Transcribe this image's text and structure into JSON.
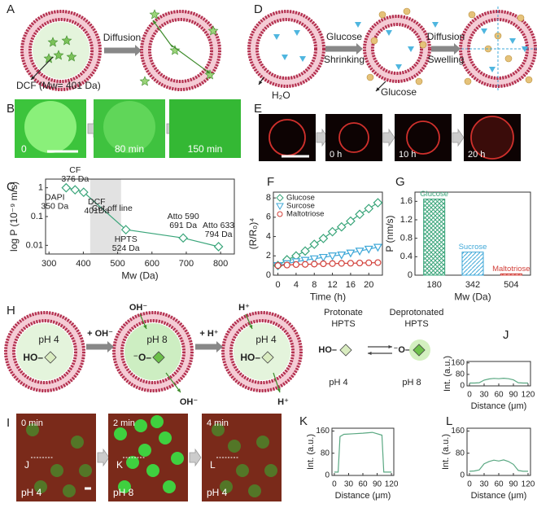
{
  "panels": {
    "A": {
      "label": "A",
      "arrow": "Diffusion",
      "dye": "DCF (Mw= 401 Da)"
    },
    "B": {
      "label": "B",
      "times": [
        "0",
        "80 min",
        "150 min"
      ]
    },
    "D": {
      "label": "D",
      "step1": [
        "Glucose",
        "Shrinking"
      ],
      "step2": [
        "Diffusion",
        "Swelling"
      ],
      "water": "H₂O",
      "solute": "Glucose"
    },
    "E": {
      "label": "E",
      "times": [
        "0 h",
        "10 h",
        "20 h"
      ]
    },
    "H": {
      "label": "H",
      "states": [
        "pH 4",
        "pH 8",
        "pH 4"
      ],
      "forms": [
        "HO–",
        "⁻O–",
        "HO–"
      ],
      "add": [
        "+ OH⁻",
        "+ H⁺"
      ],
      "ions": [
        "OH⁻",
        "OH⁻",
        "H⁺",
        "H⁺"
      ],
      "species": [
        [
          "Protonate",
          "HPTS"
        ],
        [
          "Deprotonated",
          "HPTS"
        ]
      ],
      "species_forms": [
        "HO–",
        "⁻O–"
      ],
      "species_ph": [
        "pH 4",
        "pH 8"
      ]
    },
    "I": {
      "label": "I",
      "times": [
        "0 min",
        "2 min",
        "4 min"
      ],
      "markers": [
        "J",
        "K",
        "L"
      ],
      "ph": [
        "pH 4",
        "pH 8",
        "pH 4"
      ]
    }
  },
  "chart_data": [
    {
      "type": "line",
      "label": "C",
      "x_label": "Mw (Da)",
      "y_label": "log P (10⁻⁹ m/s)",
      "log_y": true,
      "xlim": [
        290,
        840
      ],
      "xticks": [
        300,
        400,
        500,
        600,
        700,
        800
      ],
      "ylim": [
        0.005,
        2
      ],
      "yticks": [
        0.01,
        0.1,
        1
      ],
      "x": [
        350,
        376,
        401,
        524,
        691,
        794
      ],
      "values": [
        1.0,
        0.85,
        0.7,
        0.035,
        0.018,
        0.009
      ],
      "color": "#3aa57a",
      "marker": "diamond",
      "point_labels": [
        [
          "DAPI",
          "350 Da"
        ],
        [
          "CF",
          "376 Da"
        ],
        [
          "DCF",
          "401Da"
        ],
        [
          "HPTS",
          "524 Da"
        ],
        [
          "Atto 590",
          "691 Da"
        ],
        [
          "Atto 633",
          "794 Da"
        ]
      ],
      "annotation": "Cut off line",
      "cutoff_band": [
        420,
        510
      ]
    },
    {
      "type": "line",
      "label": "F",
      "x_label": "Time (h)",
      "y_label": "(R/R₀)⁴",
      "legend": "upper left",
      "xlim": [
        -1,
        23
      ],
      "xticks": [
        0,
        4,
        8,
        12,
        16,
        20
      ],
      "ylim": [
        0,
        8.6
      ],
      "yticks": [
        0,
        2,
        4,
        6,
        8
      ],
      "x": [
        0,
        2,
        4,
        6,
        8,
        10,
        12,
        14,
        16,
        18,
        20,
        22
      ],
      "series": [
        {
          "name": "Glucose",
          "color": "#3aa57a",
          "marker": "diamond",
          "values": [
            1,
            1.6,
            2.0,
            2.5,
            3.2,
            3.8,
            4.5,
            5.0,
            5.6,
            6.3,
            6.9,
            7.5
          ],
          "errors": [
            0.1,
            0.3,
            0.3,
            0.3,
            0.3,
            0.3,
            0.3,
            0.3,
            0.3,
            0.3,
            0.3,
            0.3
          ]
        },
        {
          "name": "Surcose",
          "color": "#3fa8d8",
          "marker": "triangle",
          "values": [
            1,
            1.2,
            1.4,
            1.55,
            1.7,
            1.85,
            2.0,
            2.1,
            2.3,
            2.5,
            2.7,
            2.9
          ],
          "errors": [
            0.1,
            0.3,
            0.3,
            0.3,
            0.3,
            0.3,
            0.3,
            0.3,
            0.3,
            0.3,
            0.3,
            0.3
          ]
        },
        {
          "name": "Maltotriose",
          "color": "#d2403a",
          "marker": "circle",
          "values": [
            1,
            1.05,
            1.1,
            1.12,
            1.15,
            1.18,
            1.2,
            1.22,
            1.24,
            1.26,
            1.28,
            1.3
          ],
          "errors": [
            0.05,
            0.1,
            0.1,
            0.1,
            0.1,
            0.1,
            0.1,
            0.1,
            0.1,
            0.1,
            0.1,
            0.1
          ]
        }
      ]
    },
    {
      "type": "bar",
      "label": "G",
      "x_label": "Mw (Da)",
      "y_label": "P (nm/s)",
      "categories": [
        "180",
        "342",
        "504"
      ],
      "values": [
        1.65,
        0.5,
        0.03
      ],
      "colors": [
        "#3aa57a",
        "#3fa8d8",
        "#d2403a"
      ],
      "bar_labels": [
        "Glucose",
        "Sucrose",
        "Maltotriose"
      ],
      "ylim": [
        0,
        1.8
      ],
      "yticks": [
        0,
        0.4,
        0.8,
        1.2,
        1.6
      ]
    },
    {
      "type": "line",
      "label": "J",
      "x_label": "Distance (μm)",
      "y_label": "Int. (a.u.)",
      "color": "#5aa882",
      "xlim": [
        -5,
        125
      ],
      "xticks": [
        0,
        30,
        60,
        90,
        120
      ],
      "ylim": [
        0,
        170
      ],
      "yticks": [
        0,
        80,
        160
      ],
      "x": [
        0,
        10,
        20,
        30,
        40,
        50,
        60,
        70,
        80,
        90,
        100,
        110,
        120
      ],
      "values": [
        20,
        20,
        22,
        40,
        48,
        52,
        50,
        53,
        50,
        42,
        22,
        20,
        20
      ]
    },
    {
      "type": "line",
      "label": "K",
      "x_label": "Distance (μm)",
      "y_label": "Int. (a.u.)",
      "color": "#5aa882",
      "xlim": [
        -5,
        125
      ],
      "xticks": [
        0,
        30,
        60,
        90,
        120
      ],
      "ylim": [
        0,
        170
      ],
      "yticks": [
        0,
        80,
        160
      ],
      "x": [
        0,
        8,
        12,
        20,
        40,
        60,
        80,
        100,
        104,
        110,
        120
      ],
      "values": [
        12,
        12,
        140,
        148,
        150,
        152,
        155,
        145,
        12,
        12,
        12
      ]
    },
    {
      "type": "line",
      "label": "L",
      "x_label": "Distance (μm)",
      "y_label": "Int. (a.u.)",
      "color": "#5aa882",
      "xlim": [
        -5,
        125
      ],
      "xticks": [
        0,
        30,
        60,
        90,
        120
      ],
      "ylim": [
        0,
        170
      ],
      "yticks": [
        0,
        80,
        160
      ],
      "x": [
        0,
        10,
        20,
        30,
        40,
        50,
        60,
        70,
        80,
        90,
        100,
        110,
        120
      ],
      "values": [
        15,
        16,
        20,
        42,
        50,
        55,
        52,
        56,
        50,
        40,
        18,
        15,
        15
      ]
    }
  ]
}
